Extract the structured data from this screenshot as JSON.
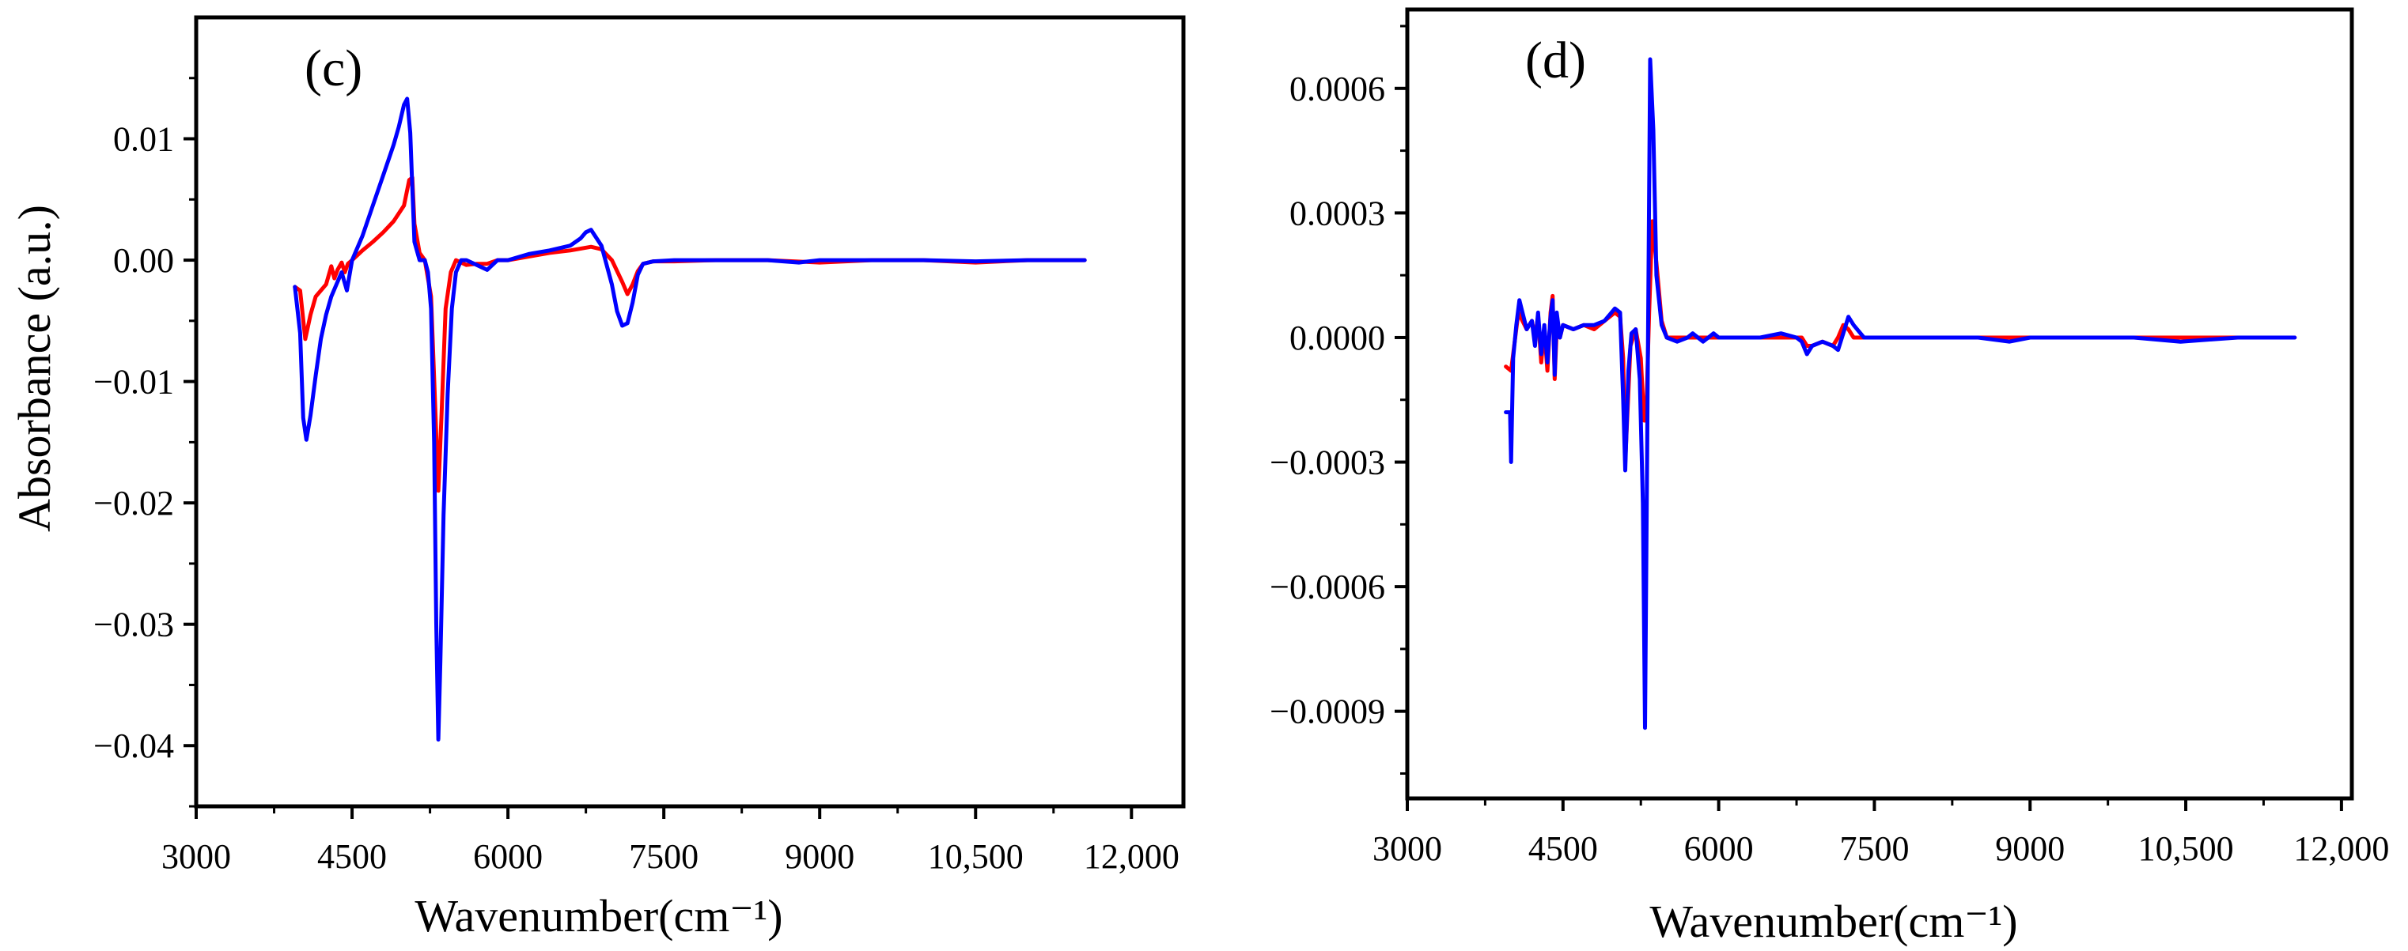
{
  "figure": {
    "background": "#ffffff",
    "series_colors": [
      "#ff0000",
      "#0000ff"
    ]
  },
  "chart_data": [
    {
      "type": "line",
      "panel_label": "(c)",
      "xlabel": "Wavenumber(cm⁻¹)",
      "ylabel": "Absorbance (a.u.)",
      "xlim": [
        3000,
        12500
      ],
      "ylim": [
        -0.045,
        0.02
      ],
      "xticks": [
        3000,
        4500,
        6000,
        7500,
        9000,
        10500,
        12000
      ],
      "xtick_labels": [
        "3000",
        "4500",
        "6000",
        "7500",
        "9000",
        "10,500",
        "12,000"
      ],
      "yticks": [
        0.01,
        0.0,
        -0.01,
        -0.02,
        -0.03,
        -0.04
      ],
      "ytick_labels": [
        "0.01",
        "0.00",
        "−0.01",
        "−0.02",
        "−0.03",
        "−0.04"
      ],
      "grid": false,
      "legend": "none",
      "series": [
        {
          "color": "#ff0000",
          "x": [
            3950,
            4000,
            4050,
            4100,
            4150,
            4200,
            4250,
            4300,
            4330,
            4360,
            4400,
            4430,
            4460,
            4500,
            4600,
            4700,
            4800,
            4900,
            5000,
            5050,
            5080,
            5100,
            5150,
            5200,
            5260,
            5300,
            5330,
            5360,
            5400,
            5450,
            5500,
            5600,
            5700,
            5800,
            5900,
            6000,
            6200,
            6400,
            6600,
            6800,
            6900,
            7000,
            7100,
            7150,
            7200,
            7250,
            7300,
            7400,
            7600,
            8000,
            8500,
            9000,
            9500,
            10000,
            10500,
            11000,
            11550
          ],
          "y": [
            -0.0022,
            -0.0025,
            -0.0065,
            -0.0045,
            -0.003,
            -0.0025,
            -0.002,
            -0.0005,
            -0.0015,
            -0.0008,
            -0.0002,
            -0.001,
            -0.0003,
            0.0,
            0.0008,
            0.0015,
            0.0023,
            0.0032,
            0.0045,
            0.0066,
            0.0068,
            0.003,
            0.0006,
            0.0,
            -0.003,
            -0.012,
            -0.019,
            -0.013,
            -0.004,
            -0.001,
            0.0,
            -0.0004,
            -0.0003,
            -0.0003,
            0.0,
            0.0,
            0.0003,
            0.0006,
            0.0008,
            0.0011,
            0.0009,
            0.0,
            -0.0018,
            -0.0028,
            -0.002,
            -0.0009,
            -0.0003,
            -0.0001,
            -0.0001,
            0.0,
            0.0,
            -0.0002,
            0.0,
            0.0,
            -0.0002,
            0.0,
            0.0
          ]
        },
        {
          "color": "#0000ff",
          "x": [
            3950,
            4000,
            4030,
            4060,
            4100,
            4150,
            4200,
            4250,
            4300,
            4350,
            4400,
            4450,
            4500,
            4600,
            4700,
            4800,
            4900,
            4950,
            5000,
            5030,
            5060,
            5080,
            5100,
            5150,
            5200,
            5230,
            5260,
            5290,
            5310,
            5330,
            5350,
            5380,
            5420,
            5460,
            5500,
            5550,
            5600,
            5700,
            5800,
            5850,
            5900,
            6000,
            6200,
            6400,
            6600,
            6700,
            6750,
            6800,
            6900,
            7000,
            7050,
            7100,
            7150,
            7200,
            7250,
            7300,
            7400,
            7600,
            8000,
            8500,
            8800,
            9000,
            9500,
            10000,
            10500,
            11000,
            11550
          ],
          "y": [
            -0.0022,
            -0.006,
            -0.013,
            -0.0148,
            -0.0128,
            -0.0095,
            -0.0065,
            -0.0045,
            -0.003,
            -0.002,
            -0.001,
            -0.0025,
            0.0,
            0.002,
            0.0045,
            0.007,
            0.0095,
            0.011,
            0.0128,
            0.0133,
            0.0105,
            0.006,
            0.0015,
            0.0,
            0.0,
            -0.001,
            -0.004,
            -0.015,
            -0.03,
            -0.0395,
            -0.033,
            -0.021,
            -0.011,
            -0.004,
            -0.001,
            0.0,
            0.0,
            -0.0004,
            -0.0008,
            -0.0004,
            0.0,
            0.0,
            0.0005,
            0.0008,
            0.0012,
            0.0018,
            0.0023,
            0.0025,
            0.0012,
            -0.002,
            -0.0042,
            -0.0054,
            -0.0052,
            -0.0035,
            -0.0012,
            -0.0003,
            -0.0001,
            0.0,
            0.0,
            0.0,
            -0.0002,
            0.0,
            0.0,
            0.0,
            -0.0001,
            0.0,
            0.0
          ]
        }
      ]
    },
    {
      "type": "line",
      "panel_label": "(d)",
      "xlabel": "Wavenumber(cm⁻¹)",
      "ylabel": "",
      "xlim": [
        3000,
        12100
      ],
      "ylim": [
        -0.00111,
        0.00079
      ],
      "xticks": [
        3000,
        4500,
        6000,
        7500,
        9000,
        10500,
        12000
      ],
      "xtick_labels": [
        "3000",
        "4500",
        "6000",
        "7500",
        "9000",
        "10,500",
        "12,000"
      ],
      "yticks": [
        0.0006,
        0.0003,
        0.0,
        -0.0003,
        -0.0006,
        -0.0009
      ],
      "ytick_labels": [
        "0.0006",
        "0.0003",
        "0.0000",
        "−0.0003",
        "−0.0006",
        "−0.0009"
      ],
      "grid": false,
      "legend": "none",
      "series": [
        {
          "color": "#ff0000",
          "x": [
            3950,
            4000,
            4030,
            4070,
            4110,
            4150,
            4200,
            4230,
            4260,
            4290,
            4320,
            4350,
            4380,
            4400,
            4420,
            4440,
            4470,
            4500,
            4600,
            4700,
            4800,
            4900,
            5000,
            5050,
            5080,
            5100,
            5150,
            5200,
            5250,
            5280,
            5300,
            5330,
            5360,
            5400,
            5450,
            5500,
            5600,
            5700,
            5750,
            5800,
            5850,
            5900,
            5950,
            6000,
            6200,
            6400,
            6600,
            6800,
            6850,
            6900,
            7000,
            7100,
            7150,
            7200,
            7250,
            7300,
            7400,
            7600,
            8000,
            8500,
            8800,
            9000,
            9500,
            10000,
            10450,
            11000,
            11550
          ],
          "y": [
            -7e-05,
            -8e-05,
            -2e-05,
            6e-05,
            4e-05,
            2e-05,
            4e-05,
            0.0,
            5e-05,
            -6e-05,
            2e-05,
            -8e-05,
            6e-05,
            0.0001,
            -0.0001,
            2e-05,
            0.0,
            3e-05,
            2e-05,
            3e-05,
            2e-05,
            4e-05,
            6e-05,
            5e-05,
            -5e-05,
            -0.0003,
            -2e-05,
            2e-05,
            -5e-05,
            -0.0002,
            -0.0002,
            6e-05,
            0.00028,
            0.00018,
            4e-05,
            0.0,
            0.0,
            0.0,
            0.0,
            0.0,
            0.0,
            0.0,
            0.0,
            0.0,
            0.0,
            0.0,
            0.0,
            0.0,
            -2e-05,
            -2e-05,
            -1e-05,
            -2e-05,
            0.0,
            3e-05,
            2e-05,
            0.0,
            0.0,
            0.0,
            0.0,
            0.0,
            0.0,
            0.0,
            0.0,
            0.0,
            0.0,
            0.0,
            0.0
          ]
        },
        {
          "color": "#0000ff",
          "x": [
            3950,
            3990,
            4000,
            4020,
            4050,
            4080,
            4110,
            4150,
            4200,
            4230,
            4260,
            4290,
            4320,
            4350,
            4380,
            4400,
            4420,
            4440,
            4470,
            4500,
            4600,
            4700,
            4800,
            4900,
            5000,
            5050,
            5080,
            5100,
            5130,
            5160,
            5200,
            5240,
            5270,
            5290,
            5310,
            5340,
            5370,
            5400,
            5450,
            5500,
            5600,
            5700,
            5750,
            5800,
            5850,
            5900,
            5950,
            6000,
            6200,
            6400,
            6600,
            6750,
            6800,
            6850,
            6900,
            7000,
            7100,
            7150,
            7200,
            7250,
            7300,
            7400,
            7600,
            8000,
            8500,
            8800,
            9000,
            9500,
            10000,
            10450,
            11000,
            11550
          ],
          "y": [
            -0.00018,
            -0.00018,
            -0.0003,
            -5e-05,
            3e-05,
            9e-05,
            6e-05,
            2e-05,
            4e-05,
            -2e-05,
            6e-05,
            -4e-05,
            3e-05,
            -6e-05,
            5e-05,
            9e-05,
            -9e-05,
            6e-05,
            0.0,
            3e-05,
            2e-05,
            3e-05,
            3e-05,
            4e-05,
            7e-05,
            6e-05,
            -0.00015,
            -0.00032,
            -8e-05,
            1e-05,
            2e-05,
            -0.0001,
            -0.0004,
            -0.00094,
            -0.0003,
            0.00067,
            0.0005,
            0.00015,
            3e-05,
            0.0,
            -1e-05,
            0.0,
            1e-05,
            0.0,
            -1e-05,
            0.0,
            1e-05,
            0.0,
            0.0,
            0.0,
            1e-05,
            0.0,
            -1e-05,
            -4e-05,
            -2e-05,
            -1e-05,
            -2e-05,
            -3e-05,
            1e-05,
            5e-05,
            3e-05,
            0.0,
            0.0,
            0.0,
            0.0,
            -1e-05,
            0.0,
            0.0,
            0.0,
            -1e-05,
            0.0,
            0.0
          ]
        }
      ]
    }
  ]
}
